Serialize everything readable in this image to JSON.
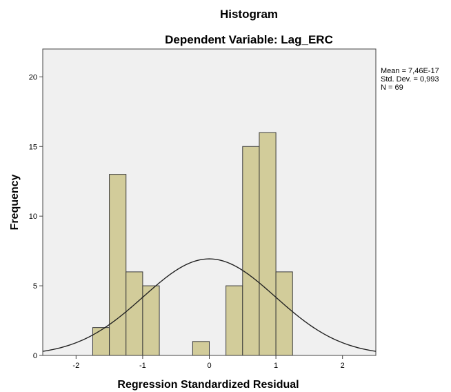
{
  "chart_data": {
    "type": "bar",
    "title": "Histogram",
    "subtitle": "Dependent Variable: Lag_ERC",
    "xlabel": "Regression Standardized Residual",
    "ylabel": "Frequency",
    "xlim": [
      -2.5,
      2.5
    ],
    "ylim": [
      0,
      22
    ],
    "x_ticks": [
      -2,
      -1,
      0,
      1,
      2
    ],
    "y_ticks": [
      0,
      5,
      10,
      15,
      20
    ],
    "bin_width": 0.25,
    "bins": [
      {
        "start": -1.75,
        "end": -1.5,
        "count": 2
      },
      {
        "start": -1.5,
        "end": -1.25,
        "count": 13
      },
      {
        "start": -1.25,
        "end": -1.0,
        "count": 6
      },
      {
        "start": -1.0,
        "end": -0.75,
        "count": 5
      },
      {
        "start": -0.25,
        "end": 0.0,
        "count": 1
      },
      {
        "start": 0.25,
        "end": 0.5,
        "count": 5
      },
      {
        "start": 0.5,
        "end": 0.75,
        "count": 15
      },
      {
        "start": 0.75,
        "end": 1.0,
        "count": 16
      },
      {
        "start": 1.0,
        "end": 1.25,
        "count": 6
      }
    ],
    "normal_curve": {
      "mean": 0,
      "sd": 0.993,
      "n": 69
    },
    "stats_box": {
      "mean": "Mean = 7,46E-17",
      "std_dev": "Std. Dev. = 0,993",
      "n": "N = 69"
    },
    "colors": {
      "bar_fill": "#D2CC9A",
      "bar_stroke": "#3A3A3A",
      "plot_background": "#F0F0F0",
      "curve": "#222222"
    },
    "grid": false
  }
}
